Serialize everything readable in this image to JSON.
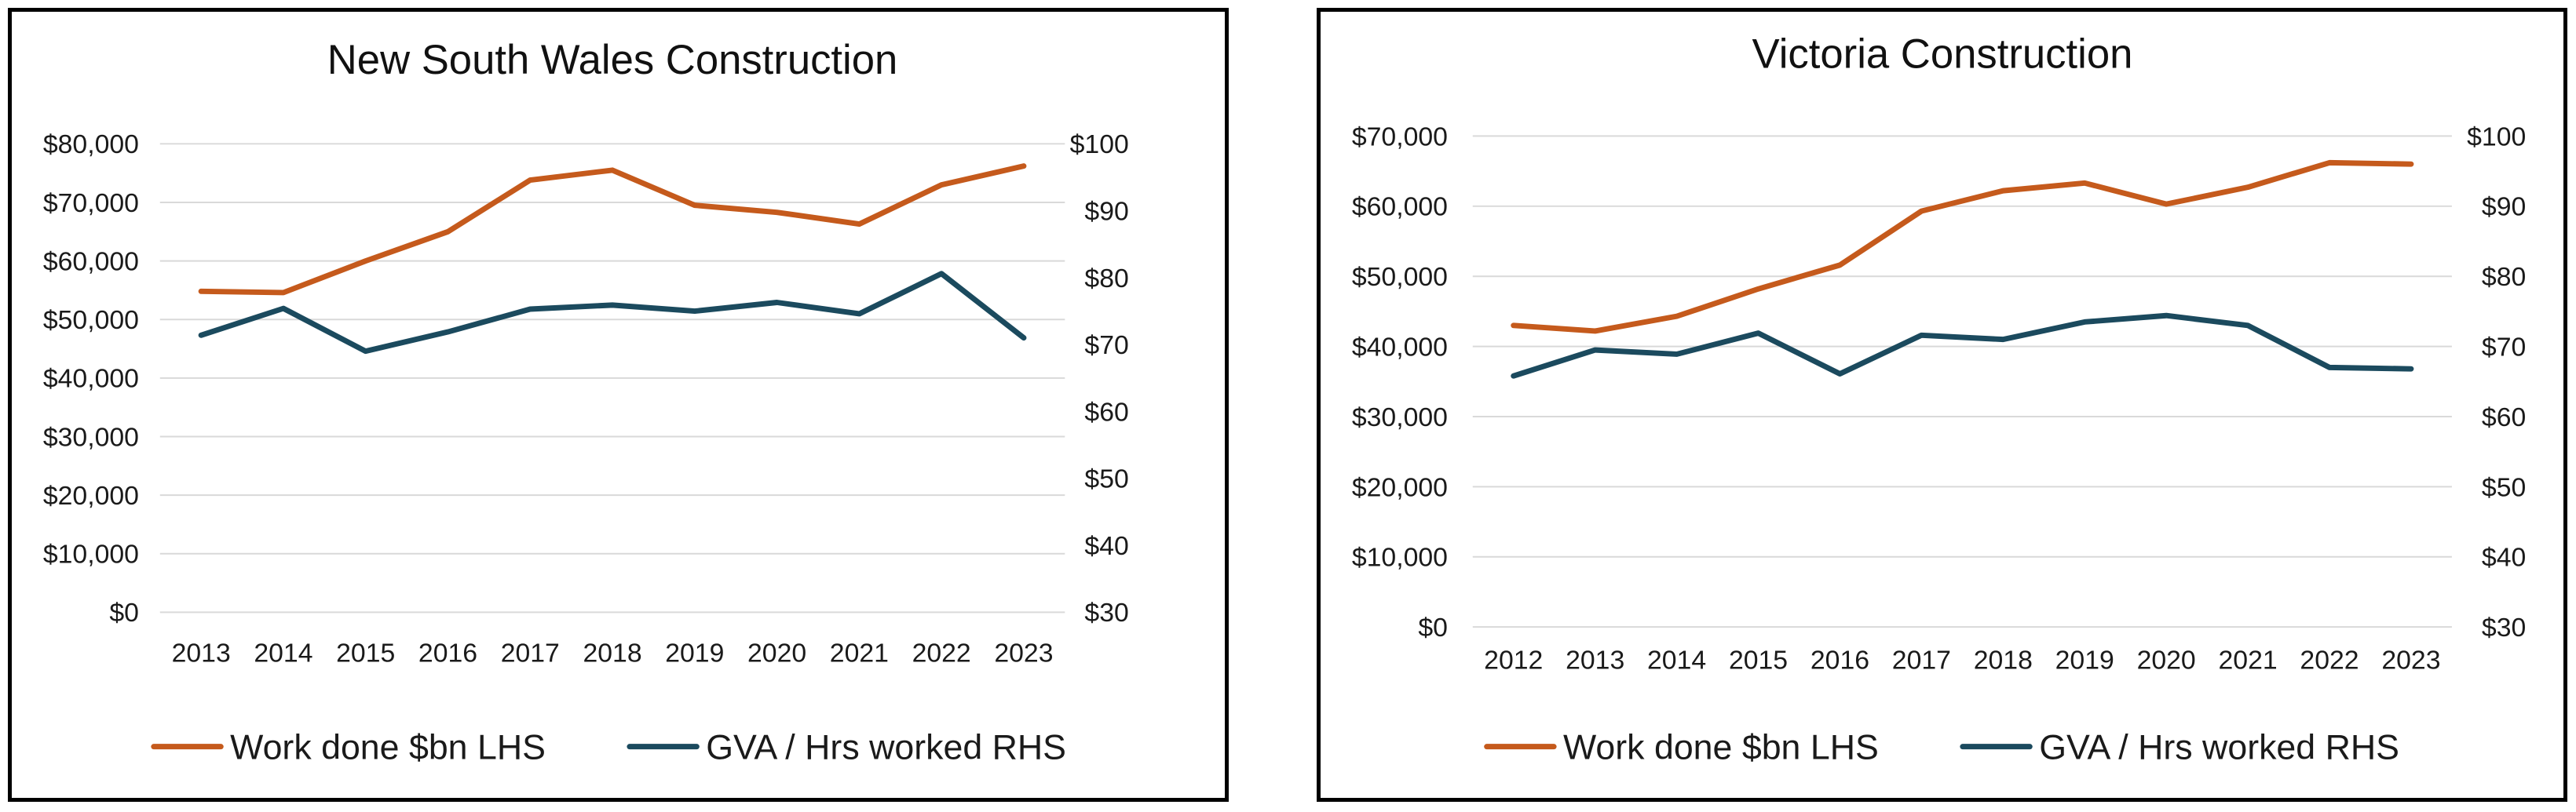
{
  "colors": {
    "work_done": "#C55A1C",
    "gva_hours": "#1B4A5E",
    "grid": "#D9D9D9"
  },
  "chart_data": [
    {
      "type": "line",
      "title": "New South Wales Construction",
      "x": [
        "2013",
        "2014",
        "2015",
        "2016",
        "2017",
        "2018",
        "2019",
        "2020",
        "2021",
        "2022",
        "2023"
      ],
      "y_left": {
        "ylim": [
          0,
          80000
        ],
        "ticks": [
          0,
          10000,
          20000,
          30000,
          40000,
          50000,
          60000,
          70000,
          80000
        ],
        "tick_labels": [
          "$0",
          "$10,000",
          "$20,000",
          "$30,000",
          "$40,000",
          "$50,000",
          "$60,000",
          "$70,000",
          "$80,000"
        ]
      },
      "y_right": {
        "ylim": [
          30,
          100
        ],
        "ticks": [
          30,
          40,
          50,
          60,
          70,
          80,
          90,
          100
        ],
        "tick_labels": [
          "$30",
          "$40",
          "$50",
          "$60",
          "$70",
          "$80",
          "$90",
          "$100"
        ]
      },
      "grid": true,
      "legend": "bottom",
      "series": [
        {
          "name": "Work done $bn LHS",
          "axis": "left",
          "color_key": "work_done",
          "values": [
            54800,
            54600,
            60000,
            65000,
            73800,
            75500,
            69500,
            68300,
            66300,
            73000,
            76200
          ]
        },
        {
          "name": "GVA / Hrs worked RHS",
          "axis": "right",
          "color_key": "gva_hours",
          "values": [
            71.4,
            75.4,
            69.0,
            71.9,
            75.3,
            75.9,
            75.0,
            76.3,
            74.6,
            80.6,
            71.0
          ]
        }
      ]
    },
    {
      "type": "line",
      "title": "Victoria Construction",
      "x": [
        "2012",
        "2013",
        "2014",
        "2015",
        "2016",
        "2017",
        "2018",
        "2019",
        "2020",
        "2021",
        "2022",
        "2023"
      ],
      "y_left": {
        "ylim": [
          0,
          70000
        ],
        "ticks": [
          0,
          10000,
          20000,
          30000,
          40000,
          50000,
          60000,
          70000
        ],
        "tick_labels": [
          "$0",
          "$10,000",
          "$20,000",
          "$30,000",
          "$40,000",
          "$50,000",
          "$60,000",
          "$70,000"
        ]
      },
      "y_right": {
        "ylim": [
          30,
          100
        ],
        "ticks": [
          30,
          40,
          50,
          60,
          70,
          80,
          90,
          100
        ],
        "tick_labels": [
          "$30",
          "$40",
          "$50",
          "$60",
          "$70",
          "$80",
          "$90",
          "$100"
        ]
      },
      "grid": true,
      "legend": "bottom",
      "series": [
        {
          "name": "Work done $bn LHS",
          "axis": "left",
          "color_key": "work_done",
          "values": [
            43000,
            42200,
            44300,
            48200,
            51600,
            59300,
            62200,
            63300,
            60300,
            62700,
            66200,
            66000
          ]
        },
        {
          "name": "GVA / Hrs worked RHS",
          "axis": "right",
          "color_key": "gva_hours",
          "values": [
            65.8,
            69.5,
            68.9,
            71.9,
            66.1,
            71.6,
            71.0,
            73.5,
            74.4,
            73.0,
            67.0,
            66.8
          ]
        }
      ]
    }
  ]
}
